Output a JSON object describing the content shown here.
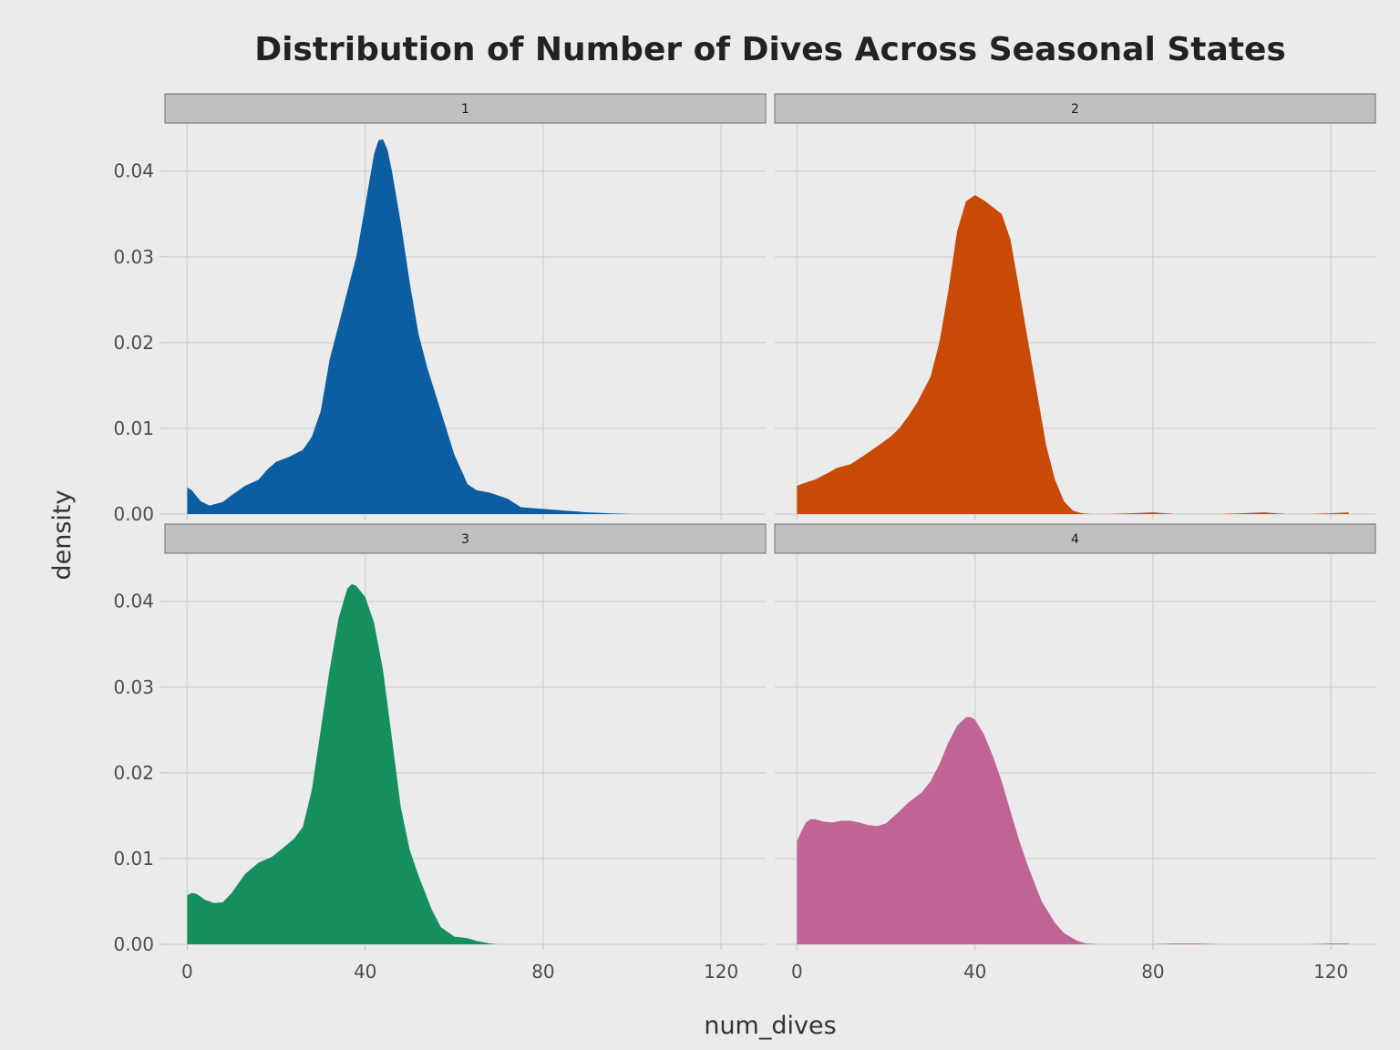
{
  "chart_data": {
    "type": "area",
    "title": "Distribution of Number of Dives Across Seasonal States",
    "xlabel": "num_dives",
    "ylabel": "density",
    "xlim": [
      -5,
      130
    ],
    "ylim": [
      0,
      0.0455
    ],
    "x_ticks": [
      0,
      40,
      80,
      120
    ],
    "y_ticks": [
      0.0,
      0.01,
      0.02,
      0.03,
      0.04
    ],
    "y_tick_labels": [
      "0.00",
      "0.01",
      "0.02",
      "0.03",
      "0.04"
    ],
    "grid": true,
    "facets": [
      {
        "strip_label": "1",
        "color": "#0b5ea1",
        "x": [
          0,
          1,
          3,
          5,
          8,
          10,
          13,
          16,
          18,
          20,
          23,
          26,
          28,
          30,
          32,
          34,
          36,
          38,
          40,
          42,
          43,
          44,
          45,
          46,
          48,
          50,
          52,
          54,
          57,
          60,
          63,
          65,
          68,
          72,
          75,
          80,
          85,
          90,
          95,
          100
        ],
        "y": [
          0.0031,
          0.0028,
          0.0015,
          0.001,
          0.0014,
          0.0022,
          0.0033,
          0.004,
          0.0052,
          0.0061,
          0.0067,
          0.0075,
          0.009,
          0.012,
          0.018,
          0.022,
          0.026,
          0.03,
          0.036,
          0.042,
          0.0436,
          0.0437,
          0.0425,
          0.04,
          0.034,
          0.027,
          0.021,
          0.017,
          0.012,
          0.007,
          0.0035,
          0.0028,
          0.0025,
          0.0018,
          0.0008,
          0.0006,
          0.0004,
          0.0002,
          0.0001,
          0.0
        ]
      },
      {
        "strip_label": "2",
        "color": "#c84a06",
        "x": [
          0,
          2,
          4,
          7,
          9,
          12,
          15,
          18,
          21,
          23,
          25,
          27,
          30,
          32,
          34,
          36,
          38,
          40,
          42,
          44,
          46,
          48,
          50,
          52,
          54,
          56,
          58,
          60,
          62,
          64,
          66,
          68,
          70,
          75,
          80,
          85,
          90,
          95,
          100,
          105,
          110,
          115,
          120,
          124
        ],
        "y": [
          0.0033,
          0.0037,
          0.004,
          0.0048,
          0.0054,
          0.0058,
          0.0068,
          0.0079,
          0.009,
          0.01,
          0.0114,
          0.013,
          0.016,
          0.02,
          0.026,
          0.033,
          0.0365,
          0.0372,
          0.0366,
          0.0358,
          0.035,
          0.032,
          0.026,
          0.02,
          0.014,
          0.008,
          0.004,
          0.0015,
          0.0004,
          0.0001,
          0.0,
          0.0,
          0.0,
          0.0001,
          0.0002,
          0.0,
          0.0,
          0.0,
          0.0001,
          0.0002,
          0.0,
          0.0,
          0.0001,
          0.0002
        ]
      },
      {
        "strip_label": "3",
        "color": "#168f5f",
        "x": [
          0,
          1,
          2,
          4,
          6,
          8,
          10,
          13,
          16,
          19,
          21,
          24,
          26,
          28,
          30,
          32,
          34,
          36,
          37,
          38,
          40,
          42,
          44,
          46,
          48,
          50,
          52,
          55,
          57,
          60,
          63,
          65,
          68,
          70
        ],
        "y": [
          0.0057,
          0.006,
          0.0059,
          0.0052,
          0.0048,
          0.0049,
          0.006,
          0.0082,
          0.0095,
          0.0102,
          0.011,
          0.0123,
          0.0137,
          0.018,
          0.025,
          0.032,
          0.038,
          0.0415,
          0.042,
          0.0418,
          0.0405,
          0.0375,
          0.032,
          0.024,
          0.016,
          0.011,
          0.008,
          0.004,
          0.002,
          0.0009,
          0.0007,
          0.0004,
          0.0001,
          0.0
        ]
      },
      {
        "strip_label": "4",
        "color": "#c06496",
        "x": [
          0,
          1,
          2,
          3,
          4,
          6,
          8,
          10,
          12,
          14,
          16,
          18,
          20,
          23,
          25,
          28,
          30,
          32,
          34,
          36,
          38,
          39,
          40,
          42,
          44,
          46,
          48,
          50,
          52,
          55,
          58,
          60,
          63,
          65,
          68,
          70,
          75,
          80,
          85,
          90,
          95,
          100,
          105,
          110,
          115,
          120,
          124
        ],
        "y": [
          0.012,
          0.0132,
          0.0142,
          0.0146,
          0.0146,
          0.0143,
          0.0142,
          0.0144,
          0.0144,
          0.0142,
          0.0139,
          0.0138,
          0.0141,
          0.0155,
          0.0165,
          0.0177,
          0.019,
          0.021,
          0.0235,
          0.0255,
          0.0265,
          0.0265,
          0.0262,
          0.0245,
          0.022,
          0.019,
          0.0155,
          0.012,
          0.009,
          0.005,
          0.0025,
          0.0013,
          0.0004,
          0.0001,
          0.0,
          0.0,
          0.0,
          0.0,
          0.0001,
          0.0001,
          0.0,
          0.0,
          0.0,
          0.0,
          0.0,
          0.0001,
          0.0001
        ]
      }
    ]
  }
}
